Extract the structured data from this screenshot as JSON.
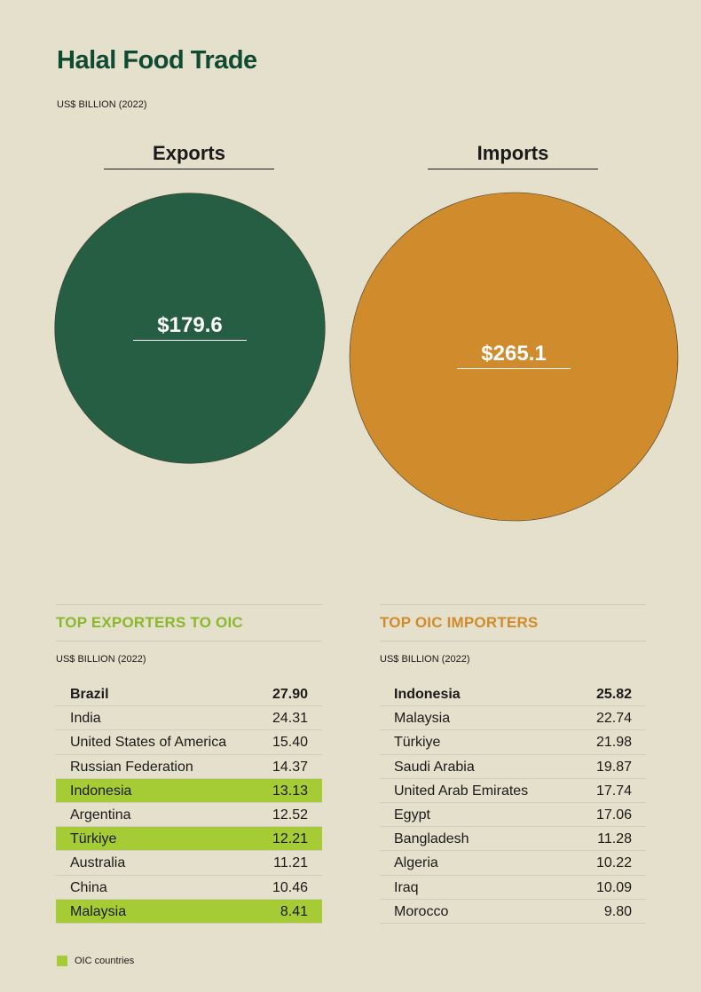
{
  "title": "Halal Food Trade",
  "subtitle": "US$ BILLION (2022)",
  "chart_data": [
    {
      "type": "bubble",
      "categories": [
        "Exports",
        "Imports"
      ],
      "values": [
        179.6,
        265.1
      ],
      "value_labels": [
        "$179.6",
        "$265.1"
      ],
      "colors": [
        "#265e44",
        "#d08b2c"
      ]
    },
    {
      "type": "table",
      "title": "TOP EXPORTERS TO OIC",
      "unit": "US$ BILLION (2022)",
      "title_color": "#8ab82d",
      "rows": [
        {
          "country": "Brazil",
          "value": "27.90",
          "oic": false
        },
        {
          "country": "India",
          "value": "24.31",
          "oic": false
        },
        {
          "country": "United States of America",
          "value": "15.40",
          "oic": false
        },
        {
          "country": "Russian Federation",
          "value": "14.37",
          "oic": false
        },
        {
          "country": "Indonesia",
          "value": "13.13",
          "oic": true
        },
        {
          "country": "Argentina",
          "value": "12.52",
          "oic": false
        },
        {
          "country": "Türkiye",
          "value": "12.21",
          "oic": true
        },
        {
          "country": "Australia",
          "value": "11.21",
          "oic": false
        },
        {
          "country": "China",
          "value": "10.46",
          "oic": false
        },
        {
          "country": "Malaysia",
          "value": "8.41",
          "oic": true
        }
      ]
    },
    {
      "type": "table",
      "title": "TOP OIC IMPORTERS",
      "unit": "US$ BILLION (2022)",
      "title_color": "#d08b2c",
      "rows": [
        {
          "country": "Indonesia",
          "value": "25.82",
          "oic": false
        },
        {
          "country": "Malaysia",
          "value": "22.74",
          "oic": false
        },
        {
          "country": "Türkiye",
          "value": "21.98",
          "oic": false
        },
        {
          "country": "Saudi Arabia",
          "value": "19.87",
          "oic": false
        },
        {
          "country": "United Arab Emirates",
          "value": "17.74",
          "oic": false
        },
        {
          "country": "Egypt",
          "value": "17.06",
          "oic": false
        },
        {
          "country": "Bangladesh",
          "value": "11.28",
          "oic": false
        },
        {
          "country": "Algeria",
          "value": "10.22",
          "oic": false
        },
        {
          "country": "Iraq",
          "value": "10.09",
          "oic": false
        },
        {
          "country": "Morocco",
          "value": "9.80",
          "oic": false
        }
      ]
    }
  ],
  "legend": {
    "label": "OIC countries",
    "color": "#a5cc34"
  }
}
